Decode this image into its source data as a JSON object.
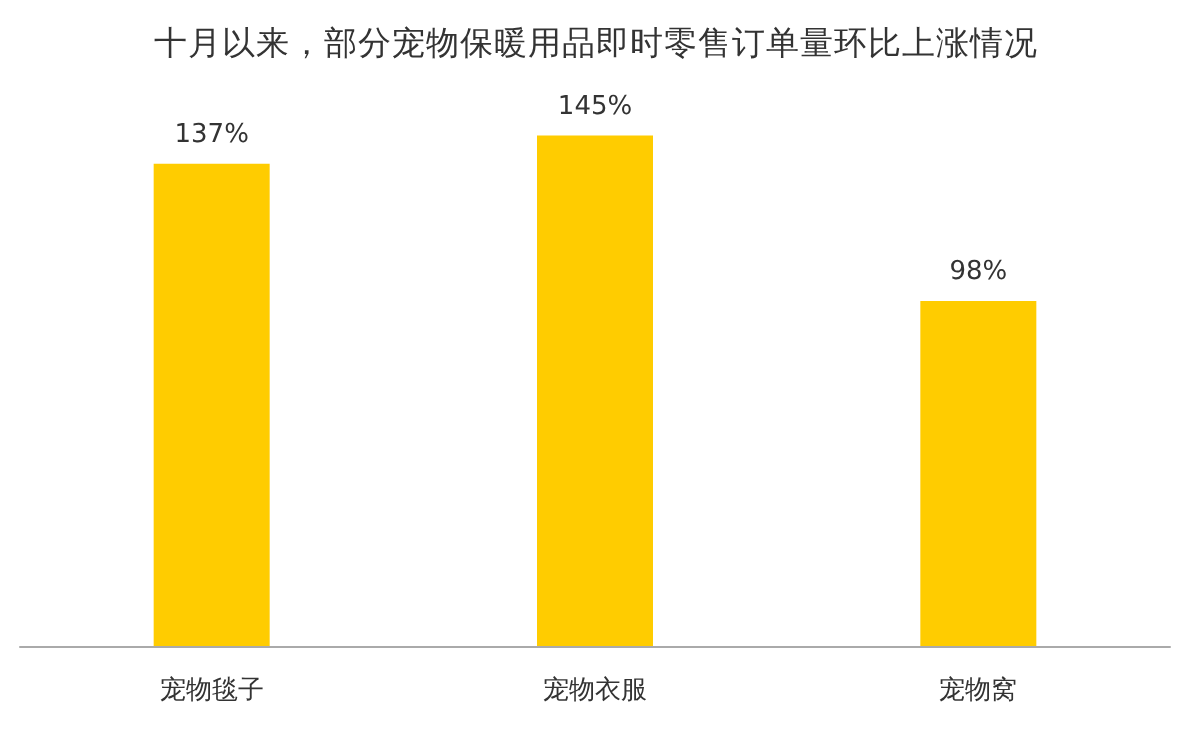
{
  "chart_data": {
    "type": "bar",
    "title": "十月以来，部分宠物保暖用品即时零售订单量环比上涨情况",
    "categories": [
      "宠物毯子",
      "宠物衣服",
      "宠物窝"
    ],
    "values": [
      137,
      145,
      98
    ],
    "color": "#ffcc00",
    "value_labels": [
      "137%",
      "145%",
      "98%"
    ]
  }
}
